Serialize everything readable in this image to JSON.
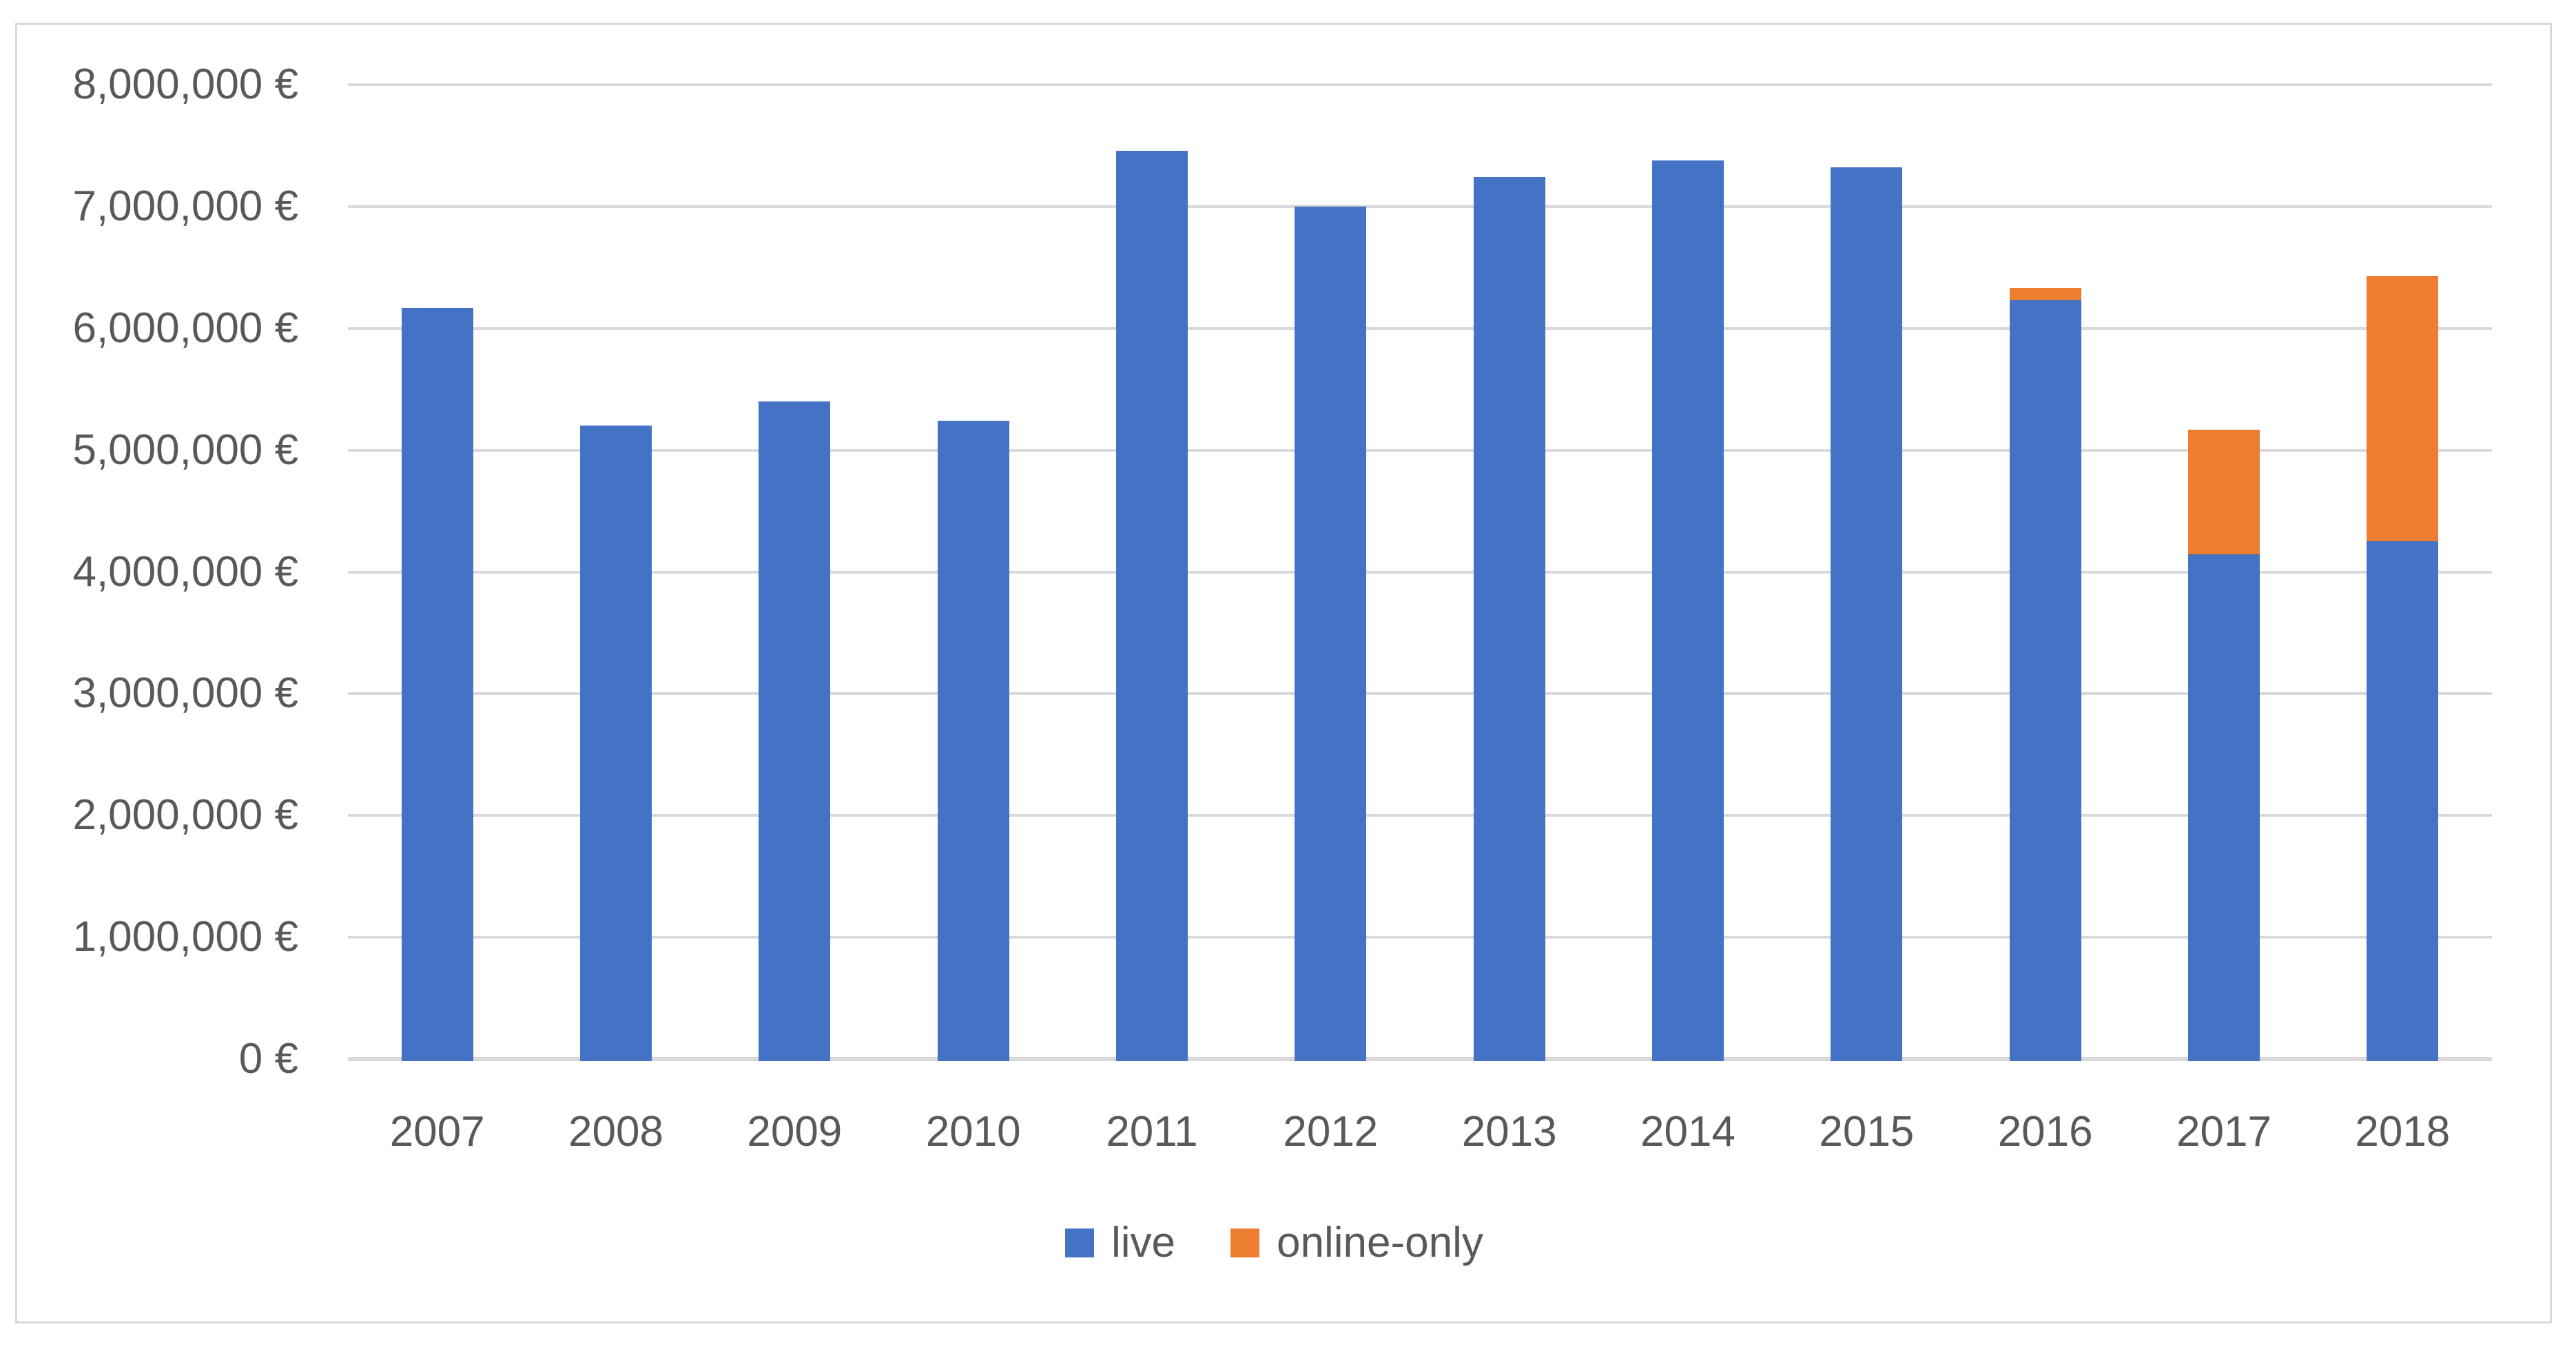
{
  "chart_data": {
    "type": "bar",
    "stacked": true,
    "title": "",
    "xlabel": "",
    "ylabel": "",
    "categories": [
      "2007",
      "2008",
      "2009",
      "2010",
      "2011",
      "2012",
      "2013",
      "2014",
      "2015",
      "2016",
      "2017",
      "2018"
    ],
    "series": [
      {
        "name": "live",
        "color": "#4472C4",
        "values": [
          6170000,
          5200000,
          5400000,
          5240000,
          7460000,
          7000000,
          7240000,
          7380000,
          7320000,
          6250000,
          4160000,
          4270000
        ]
      },
      {
        "name": "online-only",
        "color": "#ED7D31",
        "values": [
          0,
          0,
          0,
          0,
          0,
          0,
          0,
          0,
          0,
          80000,
          1010000,
          2160000
        ]
      }
    ],
    "ylim": [
      0,
      8000000
    ],
    "ytick_interval": 1000000,
    "ytick_labels": [
      "0 €",
      "1,000,000 €",
      "2,000,000 €",
      "3,000,000 €",
      "4,000,000 €",
      "5,000,000 €",
      "6,000,000 €",
      "7,000,000 €",
      "8,000,000 €"
    ],
    "grid": "horizontal",
    "legend_position": "bottom-center"
  },
  "colors": {
    "background": "#FFFFFF",
    "border": "#D9D9D9",
    "gridline": "#D9D9D9",
    "axis_line": "#D9D9D9",
    "text": "#595959"
  }
}
